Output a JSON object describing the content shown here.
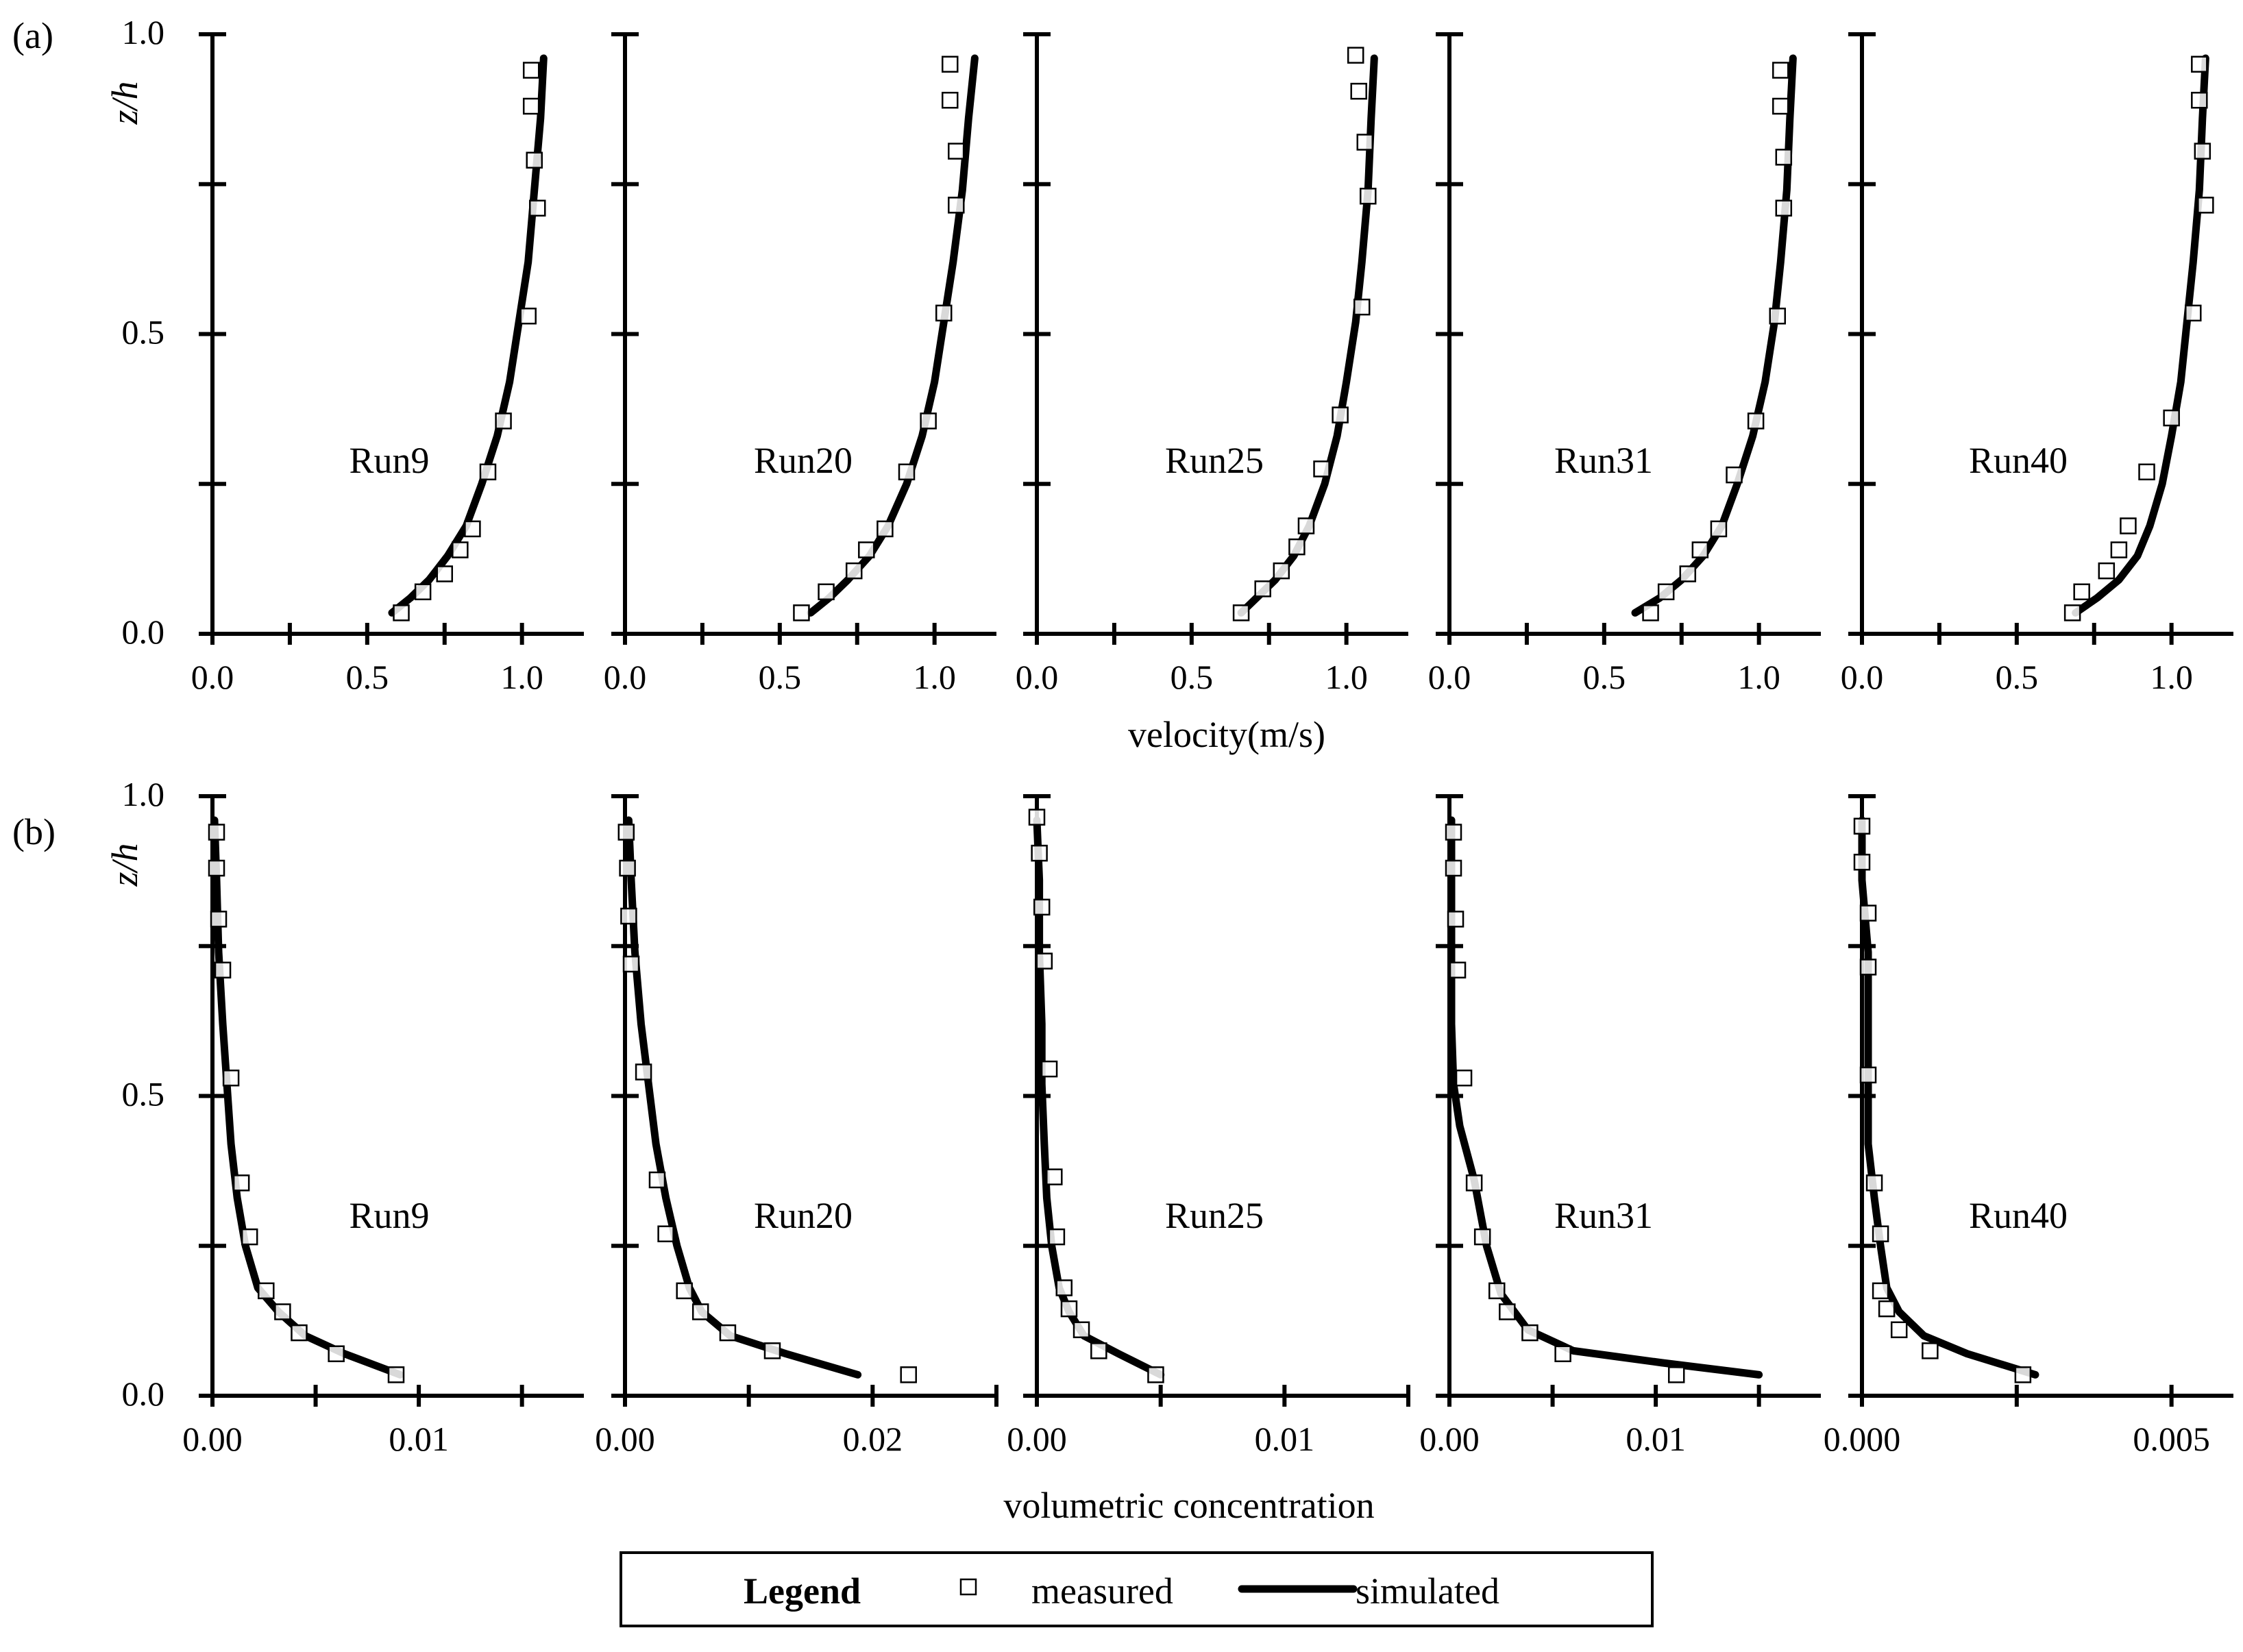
{
  "figure": {
    "rows": [
      {
        "panel_label": "(a)",
        "xlabel": "velocity(m/s)",
        "ylabel": "z/h"
      },
      {
        "panel_label": "(b)",
        "xlabel": "volumetric concentration",
        "ylabel": "z/h"
      }
    ],
    "legend": {
      "title": "Legend",
      "measured_label": "measured",
      "simulated_label": "simulated"
    }
  },
  "chart_data": [
    {
      "type": "scatter",
      "row": 0,
      "title": "Run9",
      "xlim": [
        0,
        1.2
      ],
      "ylim": [
        0,
        1.0
      ],
      "xticks": [
        "0.0",
        "0.5",
        "1.0"
      ],
      "xtick_values": [
        0,
        0.5,
        1.0
      ],
      "yticks": [
        "0.0",
        "0.5",
        "1.0"
      ],
      "ytick_values": [
        0,
        0.5,
        1.0
      ],
      "measured": {
        "x": [
          0.61,
          0.68,
          0.75,
          0.8,
          0.84,
          0.89,
          0.94,
          1.02,
          1.05,
          1.04,
          1.03,
          1.03
        ],
        "y": [
          0.035,
          0.07,
          0.1,
          0.14,
          0.175,
          0.27,
          0.355,
          0.53,
          0.71,
          0.79,
          0.88,
          0.94
        ]
      },
      "simulated": {
        "x": [
          0.58,
          0.64,
          0.7,
          0.76,
          0.82,
          0.87,
          0.92,
          0.96,
          0.99,
          1.02,
          1.04,
          1.06,
          1.07
        ],
        "y": [
          0.035,
          0.06,
          0.09,
          0.13,
          0.18,
          0.25,
          0.33,
          0.42,
          0.52,
          0.62,
          0.74,
          0.86,
          0.96
        ]
      }
    },
    {
      "type": "scatter",
      "row": 0,
      "title": "Run20",
      "xlim": [
        0,
        1.2
      ],
      "ylim": [
        0,
        1.0
      ],
      "xticks": [
        "0.0",
        "0.5",
        "1.0"
      ],
      "xtick_values": [
        0,
        0.5,
        1.0
      ],
      "yticks": [
        "0.0",
        "0.5",
        "1.0"
      ],
      "ytick_values": [
        0,
        0.5,
        1.0
      ],
      "measured": {
        "x": [
          0.57,
          0.65,
          0.74,
          0.78,
          0.84,
          0.91,
          0.98,
          1.03,
          1.07,
          1.07,
          1.05,
          1.05
        ],
        "y": [
          0.035,
          0.07,
          0.105,
          0.14,
          0.175,
          0.27,
          0.355,
          0.535,
          0.715,
          0.805,
          0.89,
          0.95
        ]
      },
      "simulated": {
        "x": [
          0.6,
          0.66,
          0.72,
          0.79,
          0.85,
          0.91,
          0.96,
          1.0,
          1.03,
          1.06,
          1.09,
          1.11,
          1.13
        ],
        "y": [
          0.035,
          0.06,
          0.09,
          0.13,
          0.18,
          0.25,
          0.33,
          0.42,
          0.52,
          0.62,
          0.74,
          0.86,
          0.96
        ]
      }
    },
    {
      "type": "scatter",
      "row": 0,
      "title": "Run25",
      "xlim": [
        0,
        1.2
      ],
      "ylim": [
        0,
        1.0
      ],
      "xticks": [
        "0.0",
        "0.5",
        "1.0"
      ],
      "xtick_values": [
        0,
        0.5,
        1.0
      ],
      "yticks": [
        "0.0",
        "0.5",
        "1.0"
      ],
      "ytick_values": [
        0,
        0.5,
        1.0
      ],
      "measured": {
        "x": [
          0.66,
          0.73,
          0.79,
          0.84,
          0.87,
          0.92,
          0.98,
          1.05,
          1.07,
          1.06,
          1.04,
          1.03
        ],
        "y": [
          0.035,
          0.075,
          0.105,
          0.145,
          0.18,
          0.275,
          0.365,
          0.545,
          0.73,
          0.82,
          0.905,
          0.965
        ]
      },
      "simulated": {
        "x": [
          0.66,
          0.71,
          0.77,
          0.83,
          0.88,
          0.93,
          0.97,
          1.0,
          1.03,
          1.05,
          1.07,
          1.08,
          1.09
        ],
        "y": [
          0.035,
          0.06,
          0.09,
          0.13,
          0.18,
          0.25,
          0.33,
          0.42,
          0.52,
          0.62,
          0.74,
          0.86,
          0.96
        ]
      }
    },
    {
      "type": "scatter",
      "row": 0,
      "title": "Run31",
      "xlim": [
        0,
        1.2
      ],
      "ylim": [
        0,
        1.0
      ],
      "xticks": [
        "0.0",
        "0.5",
        "1.0"
      ],
      "xtick_values": [
        0,
        0.5,
        1.0
      ],
      "yticks": [
        "0.0",
        "0.5",
        "1.0"
      ],
      "ytick_values": [
        0,
        0.5,
        1.0
      ],
      "measured": {
        "x": [
          0.65,
          0.7,
          0.77,
          0.81,
          0.87,
          0.92,
          0.99,
          1.06,
          1.08,
          1.08,
          1.07,
          1.07
        ],
        "y": [
          0.035,
          0.07,
          0.1,
          0.14,
          0.175,
          0.265,
          0.355,
          0.53,
          0.71,
          0.795,
          0.88,
          0.94
        ]
      },
      "simulated": {
        "x": [
          0.6,
          0.68,
          0.75,
          0.82,
          0.88,
          0.93,
          0.98,
          1.02,
          1.05,
          1.07,
          1.09,
          1.1,
          1.11
        ],
        "y": [
          0.035,
          0.06,
          0.09,
          0.13,
          0.18,
          0.25,
          0.33,
          0.42,
          0.52,
          0.62,
          0.74,
          0.86,
          0.96
        ]
      }
    },
    {
      "type": "scatter",
      "row": 0,
      "title": "Run40",
      "xlim": [
        0,
        1.2
      ],
      "ylim": [
        0,
        1.0
      ],
      "xticks": [
        "0.0",
        "0.5",
        "1.0"
      ],
      "xtick_values": [
        0,
        0.5,
        1.0
      ],
      "yticks": [
        "0.0",
        "0.5",
        "1.0"
      ],
      "ytick_values": [
        0,
        0.5,
        1.0
      ],
      "measured": {
        "x": [
          0.68,
          0.71,
          0.79,
          0.83,
          0.86,
          0.92,
          1.0,
          1.07,
          1.11,
          1.1,
          1.09,
          1.09
        ],
        "y": [
          0.035,
          0.07,
          0.105,
          0.14,
          0.18,
          0.27,
          0.36,
          0.535,
          0.715,
          0.805,
          0.89,
          0.95
        ]
      },
      "simulated": {
        "x": [
          0.69,
          0.76,
          0.83,
          0.89,
          0.93,
          0.97,
          1.0,
          1.03,
          1.05,
          1.07,
          1.09,
          1.1,
          1.11
        ],
        "y": [
          0.035,
          0.06,
          0.09,
          0.13,
          0.18,
          0.25,
          0.33,
          0.42,
          0.52,
          0.62,
          0.74,
          0.86,
          0.96
        ]
      }
    },
    {
      "type": "scatter",
      "row": 1,
      "title": "Run9",
      "xlim": [
        0,
        0.018
      ],
      "ylim": [
        0,
        1.0
      ],
      "xticks": [
        "0.00",
        "0.01"
      ],
      "xtick_values": [
        0,
        0.01
      ],
      "yticks": [
        "0.0",
        "0.5",
        "1.0"
      ],
      "ytick_values": [
        0,
        0.5,
        1.0
      ],
      "measured": {
        "x": [
          0.0089,
          0.006,
          0.0042,
          0.0034,
          0.0026,
          0.0018,
          0.0014,
          0.0009,
          0.0005,
          0.0003,
          0.0002,
          0.0002
        ],
        "y": [
          0.035,
          0.07,
          0.105,
          0.14,
          0.175,
          0.265,
          0.355,
          0.53,
          0.71,
          0.795,
          0.88,
          0.94
        ]
      },
      "simulated": {
        "x": [
          0.0091,
          0.0064,
          0.0045,
          0.0032,
          0.0022,
          0.0016,
          0.0012,
          0.0009,
          0.0007,
          0.0005,
          0.0003,
          0.0002,
          0.0001
        ],
        "y": [
          0.035,
          0.07,
          0.1,
          0.14,
          0.18,
          0.25,
          0.33,
          0.42,
          0.52,
          0.62,
          0.74,
          0.86,
          0.96
        ]
      }
    },
    {
      "type": "scatter",
      "row": 1,
      "title": "Run20",
      "xlim": [
        0,
        0.03
      ],
      "ylim": [
        0,
        1.0
      ],
      "xticks": [
        "0.00",
        "0.02"
      ],
      "xtick_values": [
        0,
        0.02
      ],
      "yticks": [
        "0.0",
        "0.5",
        "1.0"
      ],
      "ytick_values": [
        0,
        0.5,
        1.0
      ],
      "measured": {
        "x": [
          0.0229,
          0.0119,
          0.0083,
          0.0061,
          0.0048,
          0.0033,
          0.0026,
          0.0015,
          0.0005,
          0.0003,
          0.0002,
          0.0001
        ],
        "y": [
          0.035,
          0.075,
          0.105,
          0.14,
          0.175,
          0.27,
          0.36,
          0.54,
          0.72,
          0.8,
          0.88,
          0.94
        ]
      },
      "simulated": {
        "x": [
          0.0188,
          0.013,
          0.0085,
          0.0062,
          0.0052,
          0.0042,
          0.0033,
          0.0025,
          0.0019,
          0.0013,
          0.0008,
          0.0005,
          0.0003
        ],
        "y": [
          0.035,
          0.07,
          0.1,
          0.14,
          0.18,
          0.25,
          0.33,
          0.42,
          0.52,
          0.62,
          0.74,
          0.86,
          0.96
        ]
      }
    },
    {
      "type": "scatter",
      "row": 1,
      "title": "Run25",
      "xlim": [
        0,
        0.015
      ],
      "ylim": [
        0,
        1.0
      ],
      "xticks": [
        "0.00",
        "0.01"
      ],
      "xtick_values": [
        0,
        0.01
      ],
      "yticks": [
        "0.0",
        "0.5",
        "1.0"
      ],
      "ytick_values": [
        0,
        0.5,
        1.0
      ],
      "measured": {
        "x": [
          0.0048,
          0.0025,
          0.0018,
          0.0013,
          0.0011,
          0.0008,
          0.0007,
          0.0005,
          0.0003,
          0.0002,
          0.0001,
          0.0
        ],
        "y": [
          0.035,
          0.075,
          0.11,
          0.145,
          0.18,
          0.265,
          0.365,
          0.545,
          0.725,
          0.815,
          0.905,
          0.965
        ]
      },
      "simulated": {
        "x": [
          0.005,
          0.0033,
          0.0019,
          0.0013,
          0.0009,
          0.0006,
          0.0004,
          0.0003,
          0.0002,
          0.0002,
          0.0001,
          0.0001,
          0.0
        ],
        "y": [
          0.035,
          0.07,
          0.1,
          0.14,
          0.18,
          0.25,
          0.33,
          0.42,
          0.52,
          0.62,
          0.74,
          0.86,
          0.96
        ]
      }
    },
    {
      "type": "scatter",
      "row": 1,
      "title": "Run31",
      "xlim": [
        0,
        0.018
      ],
      "ylim": [
        0,
        1.0
      ],
      "xticks": [
        "0.00",
        "0.01"
      ],
      "xtick_values": [
        0,
        0.01
      ],
      "yticks": [
        "0.0",
        "0.5",
        "1.0"
      ],
      "ytick_values": [
        0,
        0.5,
        1.0
      ],
      "measured": {
        "x": [
          0.011,
          0.0055,
          0.0039,
          0.0028,
          0.0023,
          0.0016,
          0.0012,
          0.0007,
          0.0004,
          0.0003,
          0.0002,
          0.0002
        ],
        "y": [
          0.035,
          0.07,
          0.105,
          0.14,
          0.175,
          0.265,
          0.355,
          0.53,
          0.71,
          0.795,
          0.88,
          0.94
        ]
      },
      "simulated": {
        "x": [
          0.015,
          0.0103,
          0.006,
          0.0038,
          0.0025,
          0.0018,
          0.0012,
          0.0005,
          0.0002,
          0.0001,
          0.0001,
          0.0001,
          0.0001
        ],
        "y": [
          0.035,
          0.055,
          0.075,
          0.11,
          0.17,
          0.25,
          0.36,
          0.45,
          0.52,
          0.62,
          0.74,
          0.86,
          0.96
        ]
      }
    },
    {
      "type": "scatter",
      "row": 1,
      "title": "Run40",
      "xlim": [
        0,
        0.006
      ],
      "ylim": [
        0,
        1.0
      ],
      "xticks": [
        "0.000",
        "0.005"
      ],
      "xtick_values": [
        0,
        0.005
      ],
      "yticks": [
        "0.0",
        "0.5",
        "1.0"
      ],
      "ytick_values": [
        0,
        0.5,
        1.0
      ],
      "measured": {
        "x": [
          0.0026,
          0.0011,
          0.0006,
          0.0004,
          0.0003,
          0.0003,
          0.0002,
          0.0001,
          0.0001,
          0.0001,
          0.0,
          0.0
        ],
        "y": [
          0.035,
          0.075,
          0.11,
          0.145,
          0.175,
          0.27,
          0.355,
          0.535,
          0.715,
          0.805,
          0.89,
          0.95
        ]
      },
      "simulated": {
        "x": [
          0.0028,
          0.0017,
          0.001,
          0.0006,
          0.0004,
          0.0003,
          0.0002,
          0.0001,
          0.0001,
          0.0001,
          0.0001,
          0.0,
          0.0
        ],
        "y": [
          0.035,
          0.07,
          0.1,
          0.14,
          0.18,
          0.25,
          0.33,
          0.42,
          0.52,
          0.62,
          0.74,
          0.86,
          0.96
        ]
      }
    }
  ]
}
